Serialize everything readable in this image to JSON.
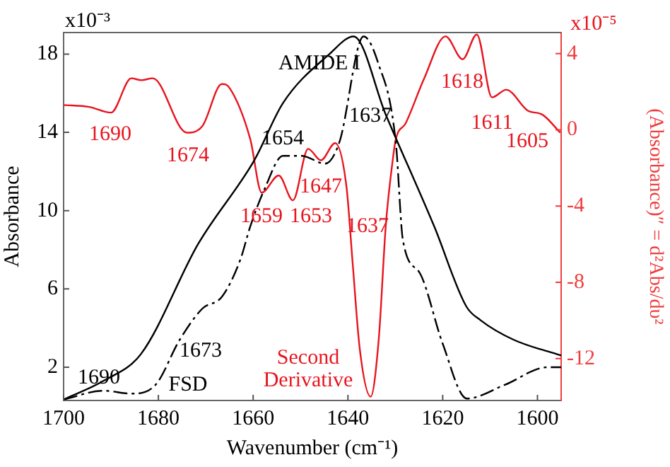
{
  "chart_data": {
    "type": "line",
    "xlabel": "Wavenumber (cm⁻¹)",
    "ylabel": "Absorbance",
    "y2label": "(Absorbance)″ = d²Abs/dυ²",
    "xlim": [
      1700,
      1595
    ],
    "xticks": [
      1700,
      1680,
      1660,
      1640,
      1620,
      1600
    ],
    "ylim": [
      0.3,
      19.1
    ],
    "yticks": [
      2,
      6,
      10,
      14,
      18
    ],
    "y2lim": [
      -14.2,
      5.1
    ],
    "y2ticks": [
      4,
      0,
      -4,
      -8,
      -12
    ],
    "grid": false,
    "legend": false,
    "marker": "none",
    "series": [
      {
        "type": "line",
        "color": "#000000",
        "line_style": "solid",
        "x": [
          1700,
          1691.6,
          1683.6,
          1671.6,
          1659.7,
          1653.7,
          1643.9,
          1638.8,
          1632,
          1621.8,
          1615,
          1612,
          1605,
          1595
        ],
        "values": [
          0.35,
          1.3,
          2.7,
          8.3,
          12.6,
          15.5,
          18.0,
          18.9,
          14.9,
          9.2,
          5.1,
          4.4,
          3.4,
          2.6
        ]
      },
      {
        "type": "line",
        "color": "#000000",
        "line_style": "dashed",
        "x": [
          1700,
          1691.6,
          1685.7,
          1680.6,
          1675.5,
          1670.7,
          1666.6,
          1662.7,
          1660.6,
          1657.6,
          1653.7,
          1649.8,
          1644.8,
          1641.8,
          1636.7,
          1633.7,
          1629.9,
          1628.4,
          1624.8,
          1620,
          1614.9,
          1606.9,
          1597.9,
          1595
        ],
        "values": [
          0.35,
          0.8,
          0.65,
          1.1,
          3.4,
          5.0,
          5.6,
          7.5,
          9.2,
          11.1,
          12.8,
          12.8,
          12.4,
          13.5,
          18.9,
          17.6,
          13.5,
          8.5,
          6.8,
          3.2,
          0.4,
          1.1,
          2.0,
          2.0
        ]
      },
      {
        "type": "line",
        "color": "#e8141e",
        "line_style": "solid",
        "axis": "y2",
        "x": [
          1700,
          1694.6,
          1690,
          1685.7,
          1683.6,
          1681.2,
          1674,
          1670.7,
          1666.6,
          1665,
          1660.6,
          1658.2,
          1654.6,
          1651.6,
          1648.4,
          1645.7,
          1642.7,
          1640.3,
          1639,
          1637.5,
          1635.2,
          1633.5,
          1632,
          1630.5,
          1629.9,
          1627.8,
          1623.9,
          1619.4,
          1615.8,
          1612.8,
          1609.6,
          1606.6,
          1602,
          1599,
          1595.2
        ],
        "values": [
          1.3,
          1.2,
          0.9,
          2.7,
          2.6,
          2.7,
          -0.15,
          0.2,
          2.4,
          2.2,
          -0.5,
          -3.3,
          -2.4,
          -3.7,
          -1.0,
          -1.6,
          -0.7,
          -3.0,
          -7,
          -11.5,
          -14.0,
          -11,
          -5,
          -1.5,
          -0.5,
          0.35,
          2.7,
          4.9,
          3.7,
          5.0,
          1.7,
          2.1,
          1.0,
          0.8,
          -0.15
        ]
      }
    ],
    "annotations": [
      "x10⁻³",
      "x10⁻⁵",
      "AMIDE I",
      "1637",
      "1654",
      "1673",
      "1690",
      "FSD",
      "Second Derivative",
      "1690",
      "1674",
      "1659",
      "1653",
      "1647",
      "1637",
      "1618",
      "1611",
      "1605"
    ]
  }
}
